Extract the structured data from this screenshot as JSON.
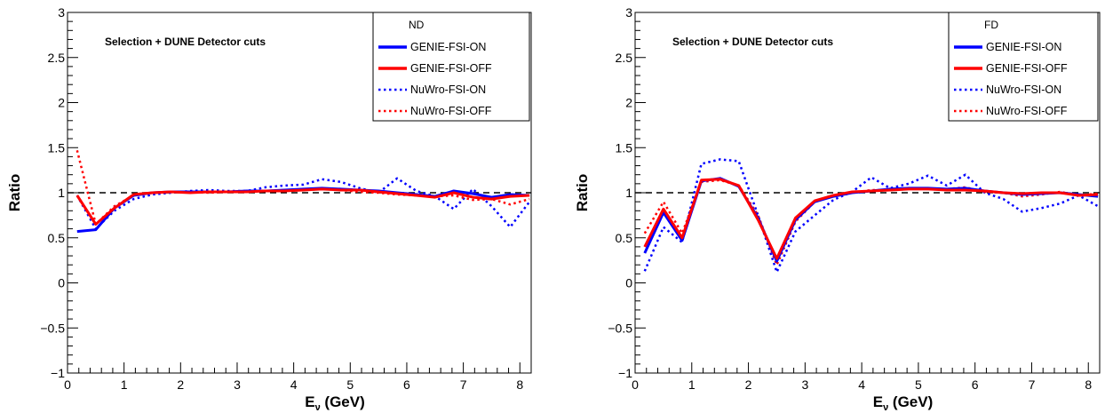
{
  "chart_data": [
    {
      "type": "line",
      "legend_title": "ND",
      "annotation": "Selection + DUNE Detector cuts",
      "xlabel_main": "E",
      "xlabel_sub": "ν",
      "xlabel_unit": "(GeV)",
      "ylabel": "Ratio",
      "xlim": [
        0,
        8.2
      ],
      "ylim": [
        -1,
        3
      ],
      "xticks": [
        "0",
        "1",
        "2",
        "3",
        "4",
        "5",
        "6",
        "7",
        "8"
      ],
      "yticks": [
        "−1",
        "−0.5",
        "0",
        "0.5",
        "1",
        "1.5",
        "2",
        "2.5",
        "3"
      ],
      "reference_line": 1,
      "legend_position": "top-right",
      "series": [
        {
          "name": "GENIE-FSI-ON",
          "color": "#0000ff",
          "style": "solid",
          "x": [
            0.17,
            0.5,
            0.83,
            1.17,
            1.5,
            1.83,
            2.17,
            2.5,
            2.83,
            3.17,
            3.5,
            3.83,
            4.17,
            4.5,
            4.83,
            5.17,
            5.5,
            5.83,
            6.17,
            6.5,
            6.83,
            7.17,
            7.5,
            7.83,
            8.17
          ],
          "y": [
            0.57,
            0.59,
            0.83,
            0.97,
            1.0,
            1.01,
            1.01,
            1.01,
            1.01,
            1.02,
            1.02,
            1.03,
            1.04,
            1.05,
            1.04,
            1.03,
            1.02,
            1.0,
            0.98,
            0.96,
            1.02,
            0.99,
            0.95,
            0.98,
            0.97
          ]
        },
        {
          "name": "GENIE-FSI-OFF",
          "color": "#ff0000",
          "style": "solid",
          "x": [
            0.17,
            0.5,
            0.83,
            1.17,
            1.5,
            1.83,
            2.17,
            2.5,
            2.83,
            3.17,
            3.5,
            3.83,
            4.17,
            4.5,
            4.83,
            5.17,
            5.5,
            5.83,
            6.17,
            6.5,
            6.83,
            7.17,
            7.5,
            7.83,
            8.17
          ],
          "y": [
            0.97,
            0.65,
            0.83,
            0.98,
            1.0,
            1.01,
            1.0,
            1.01,
            1.01,
            1.01,
            1.02,
            1.02,
            1.03,
            1.04,
            1.03,
            1.03,
            1.01,
            0.99,
            0.97,
            0.95,
            1.0,
            0.95,
            0.93,
            0.96,
            0.97
          ]
        },
        {
          "name": "NuWro-FSI-ON",
          "color": "#0000ff",
          "style": "dotted",
          "x": [
            0.17,
            0.5,
            0.83,
            1.17,
            1.5,
            1.83,
            2.17,
            2.5,
            2.83,
            3.17,
            3.5,
            3.83,
            4.17,
            4.5,
            4.83,
            5.17,
            5.5,
            5.83,
            6.17,
            6.5,
            6.83,
            7.17,
            7.5,
            7.83,
            8.17
          ],
          "y": [
            0.97,
            0.6,
            0.8,
            0.93,
            0.98,
            1.0,
            1.02,
            1.03,
            1.02,
            1.02,
            1.06,
            1.08,
            1.09,
            1.15,
            1.12,
            1.05,
            1.0,
            1.16,
            1.02,
            0.96,
            0.82,
            1.04,
            0.85,
            0.62,
            0.9
          ]
        },
        {
          "name": "NuWro-FSI-OFF",
          "color": "#ff0000",
          "style": "dotted",
          "x": [
            0.17,
            0.5,
            0.83,
            1.17,
            1.5,
            1.83,
            2.17,
            2.5,
            2.83,
            3.17,
            3.5,
            3.83,
            4.17,
            4.5,
            4.83,
            5.17,
            5.5,
            5.83,
            6.17,
            6.5,
            6.83,
            7.17,
            7.5,
            7.83,
            8.17
          ],
          "y": [
            1.47,
            0.65,
            0.85,
            0.97,
            1.0,
            1.01,
            1.01,
            1.0,
            1.01,
            1.01,
            1.02,
            1.03,
            1.03,
            1.04,
            1.03,
            1.01,
            1.0,
            0.98,
            0.97,
            0.96,
            0.97,
            0.92,
            0.93,
            0.87,
            0.93
          ]
        }
      ]
    },
    {
      "type": "line",
      "legend_title": "FD",
      "annotation": "Selection + DUNE Detector cuts",
      "xlabel_main": "E",
      "xlabel_sub": "ν",
      "xlabel_unit": "(GeV)",
      "ylabel": "Ratio",
      "xlim": [
        0,
        8.2
      ],
      "ylim": [
        -1,
        3
      ],
      "xticks": [
        "0",
        "1",
        "2",
        "3",
        "4",
        "5",
        "6",
        "7",
        "8"
      ],
      "yticks": [
        "−1",
        "−0.5",
        "0",
        "0.5",
        "1",
        "1.5",
        "2",
        "2.5",
        "3"
      ],
      "reference_line": 1,
      "legend_position": "top-right",
      "series": [
        {
          "name": "GENIE-FSI-ON",
          "color": "#0000ff",
          "style": "solid",
          "x": [
            0.17,
            0.5,
            0.83,
            1.17,
            1.5,
            1.83,
            2.17,
            2.5,
            2.83,
            3.17,
            3.5,
            3.83,
            4.17,
            4.5,
            4.83,
            5.17,
            5.5,
            5.83,
            6.17,
            6.5,
            6.83,
            7.17,
            7.5,
            7.83,
            8.17
          ],
          "y": [
            0.33,
            0.78,
            0.47,
            1.13,
            1.16,
            1.07,
            0.72,
            0.24,
            0.7,
            0.9,
            0.96,
            1.0,
            1.02,
            1.04,
            1.05,
            1.05,
            1.04,
            1.05,
            1.02,
            1.0,
            0.98,
            0.99,
            1.0,
            0.98,
            0.96
          ]
        },
        {
          "name": "GENIE-FSI-OFF",
          "color": "#ff0000",
          "style": "solid",
          "x": [
            0.17,
            0.5,
            0.83,
            1.17,
            1.5,
            1.83,
            2.17,
            2.5,
            2.83,
            3.17,
            3.5,
            3.83,
            4.17,
            4.5,
            4.83,
            5.17,
            5.5,
            5.83,
            6.17,
            6.5,
            6.83,
            7.17,
            7.5,
            7.83,
            8.17
          ],
          "y": [
            0.4,
            0.82,
            0.5,
            1.14,
            1.15,
            1.08,
            0.7,
            0.27,
            0.72,
            0.91,
            0.97,
            1.01,
            1.02,
            1.03,
            1.04,
            1.04,
            1.03,
            1.03,
            1.02,
            1.0,
            0.99,
            1.0,
            1.0,
            0.97,
            0.98
          ]
        },
        {
          "name": "NuWro-FSI-ON",
          "color": "#0000ff",
          "style": "dotted",
          "x": [
            0.17,
            0.5,
            0.83,
            1.17,
            1.5,
            1.83,
            2.17,
            2.5,
            2.83,
            3.17,
            3.5,
            3.83,
            4.17,
            4.5,
            4.83,
            5.17,
            5.5,
            5.83,
            6.17,
            6.5,
            6.83,
            7.17,
            7.5,
            7.83,
            8.17
          ],
          "y": [
            0.13,
            0.62,
            0.45,
            1.32,
            1.37,
            1.35,
            0.75,
            0.12,
            0.57,
            0.75,
            0.92,
            1.01,
            1.17,
            1.05,
            1.1,
            1.19,
            1.08,
            1.2,
            1.0,
            0.93,
            0.79,
            0.83,
            0.88,
            0.97,
            0.85
          ]
        },
        {
          "name": "NuWro-FSI-OFF",
          "color": "#ff0000",
          "style": "dotted",
          "x": [
            0.17,
            0.5,
            0.83,
            1.17,
            1.5,
            1.83,
            2.17,
            2.5,
            2.83,
            3.17,
            3.5,
            3.83,
            4.17,
            4.5,
            4.83,
            5.17,
            5.5,
            5.83,
            6.17,
            6.5,
            6.83,
            7.17,
            7.5,
            7.83,
            8.17
          ],
          "y": [
            0.55,
            0.9,
            0.55,
            1.12,
            1.14,
            1.08,
            0.75,
            0.2,
            0.68,
            0.9,
            0.97,
            1.0,
            1.03,
            1.03,
            1.05,
            1.04,
            1.04,
            1.06,
            1.01,
            1.0,
            0.96,
            0.98,
            1.01,
            0.97,
            0.99
          ]
        }
      ]
    }
  ]
}
